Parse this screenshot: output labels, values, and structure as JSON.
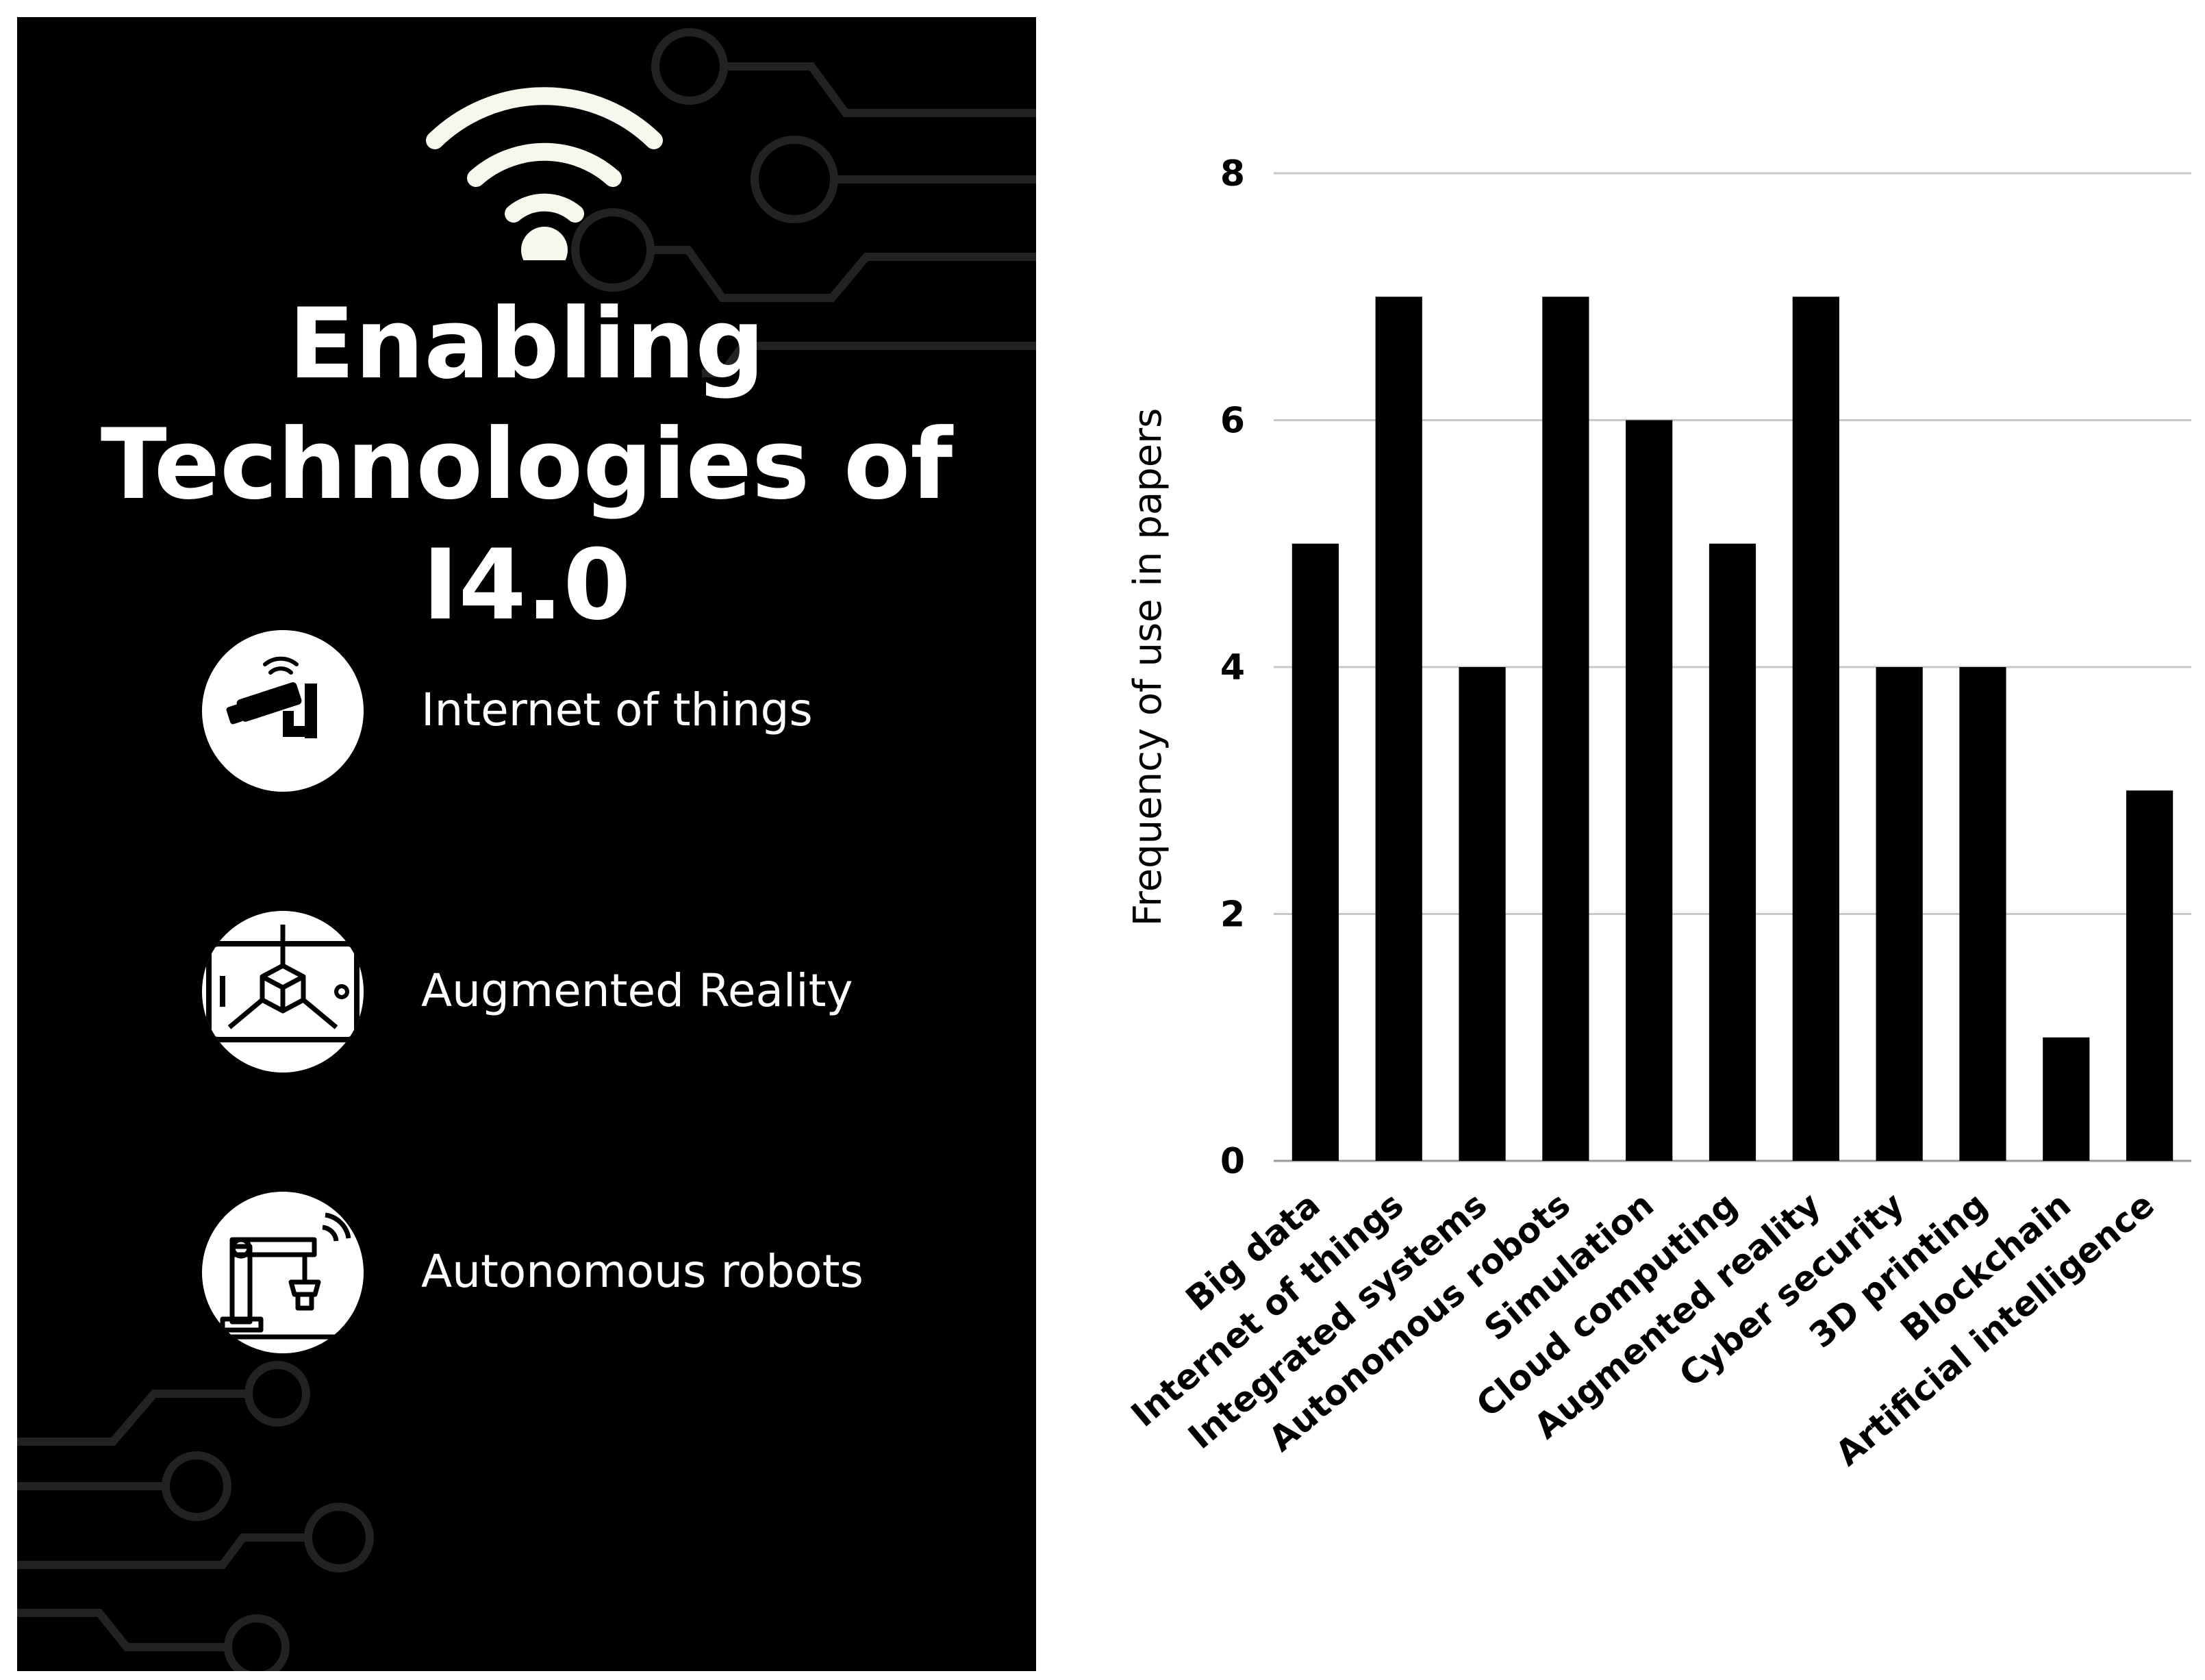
{
  "poster": {
    "title_lines": [
      "Enabling",
      "Technologies of",
      "I4.0"
    ],
    "items": [
      {
        "label": "Internet of things",
        "icon": "cctv-camera-icon"
      },
      {
        "label": "Augmented Reality",
        "icon": "ar-cube-tablet-icon"
      },
      {
        "label": "Autonomous robots",
        "icon": "robot-arm-icon"
      }
    ],
    "top_icon": "wifi-icon",
    "colors": {
      "background": "#000000",
      "text": "#ffffff"
    }
  },
  "chart_data": {
    "type": "bar",
    "title": "",
    "xlabel": "",
    "ylabel": "Frequency of use in papers",
    "categories": [
      "Big data",
      "Internet of things",
      "Integrated systems",
      "Autonomous robots",
      "Simulation",
      "Cloud computing",
      "Augmented reality",
      "Cyber security",
      "3D printing",
      "Blockchain",
      "Artificial intelligence"
    ],
    "values": [
      5,
      7,
      4,
      7,
      6,
      5,
      7,
      4,
      4,
      1,
      3
    ],
    "ylim": [
      0,
      8
    ],
    "yticks": [
      0,
      2,
      4,
      6,
      8
    ],
    "grid": true,
    "bar_color": "#000000"
  }
}
